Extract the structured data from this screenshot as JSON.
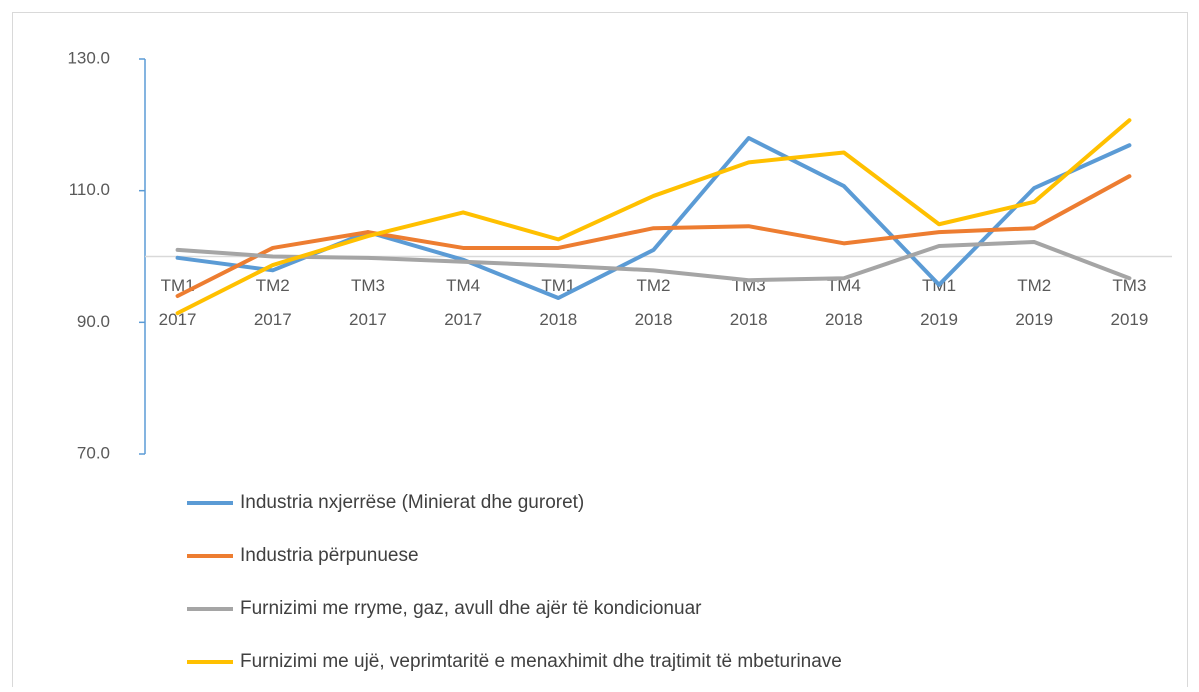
{
  "chart_data": {
    "type": "line",
    "categories": [
      [
        "TM1",
        "2017"
      ],
      [
        "TM2",
        "2017"
      ],
      [
        "TM3",
        "2017"
      ],
      [
        "TM4",
        "2017"
      ],
      [
        "TM1",
        "2018"
      ],
      [
        "TM2",
        "2018"
      ],
      [
        "TM3",
        "2018"
      ],
      [
        "TM4",
        "2018"
      ],
      [
        "TM1",
        "2019"
      ],
      [
        "TM2",
        "2019"
      ],
      [
        "TM3",
        "2019"
      ]
    ],
    "series": [
      {
        "name": "Industria nxjerrëse (Minierat dhe guroret)",
        "color": "#5b9bd5",
        "values": [
          99.8,
          97.9,
          103.7,
          99.5,
          93.7,
          101,
          118,
          110.7,
          95.7,
          110.4,
          116.9
        ]
      },
      {
        "name": "Industria përpunuese",
        "color": "#ed7d31",
        "values": [
          94,
          101.3,
          103.7,
          101.3,
          101.3,
          104.3,
          104.6,
          102,
          103.7,
          104.3,
          112.2
        ]
      },
      {
        "name": "Furnizimi me rryme, gaz, avull dhe ajër të kondicionuar",
        "color": "#a5a5a5",
        "values": [
          101,
          100,
          99.8,
          99.2,
          98.6,
          97.9,
          96.4,
          96.7,
          101.6,
          102.2,
          96.7
        ]
      },
      {
        "name": "Furnizimi me ujë, veprimtaritë e menaxhimit dhe trajtimit të mbeturinave",
        "color": "#ffc000",
        "values": [
          91.4,
          98.7,
          103.1,
          106.7,
          102.6,
          109.2,
          114.3,
          115.8,
          104.9,
          108.3,
          120.7
        ]
      }
    ],
    "ylim": [
      70,
      130
    ],
    "yticks": [
      {
        "value": 70,
        "label": "70.0"
      },
      {
        "value": 90,
        "label": "90.0"
      },
      {
        "value": 110,
        "label": "110.0"
      },
      {
        "value": 130,
        "label": "130.0"
      }
    ],
    "x_axis_crossing": 100,
    "legend": "bottom"
  }
}
